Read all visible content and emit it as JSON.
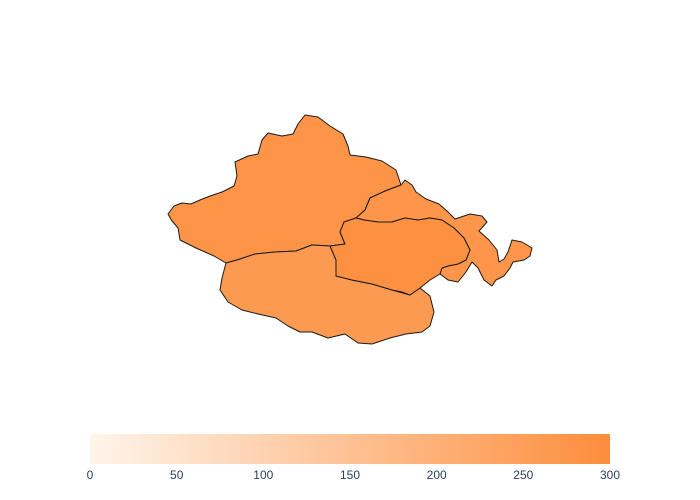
{
  "map": {
    "type": "choropleth",
    "regions": [
      {
        "value": 280
      },
      {
        "value": 275
      },
      {
        "value": 262
      },
      {
        "value": 292
      }
    ]
  },
  "colorbar": {
    "min": 0,
    "max": 300,
    "color_low": "#fff5eb",
    "color_high": "#fd8d3c",
    "ticks": [
      "0",
      "50",
      "100",
      "150",
      "200",
      "250",
      "300"
    ],
    "orientation": "horizontal",
    "placement": "bottom"
  }
}
